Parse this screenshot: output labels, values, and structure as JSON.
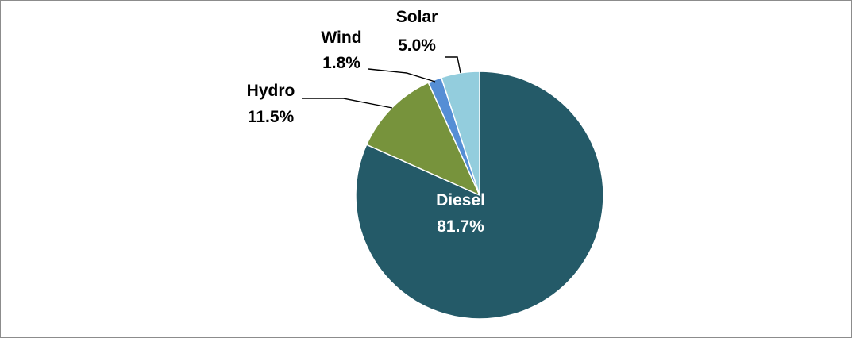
{
  "chart_data": {
    "type": "pie",
    "title": "",
    "slices": [
      {
        "name": "Diesel",
        "value": 81.7,
        "label": "81.7%",
        "color": "#245a68"
      },
      {
        "name": "Hydro",
        "value": 11.5,
        "label": "11.5%",
        "color": "#77933c"
      },
      {
        "name": "Wind",
        "value": 1.8,
        "label": "1.8%",
        "color": "#558ed5"
      },
      {
        "name": "Solar",
        "value": 5.0,
        "label": "5.0%",
        "color": "#93cddd"
      }
    ],
    "legend": "none",
    "data_labels": "name-and-percent"
  }
}
